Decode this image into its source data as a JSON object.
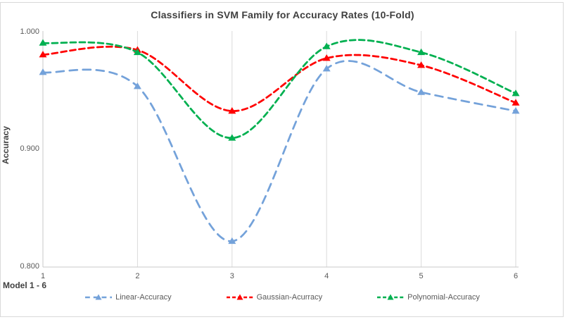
{
  "chart_data": {
    "type": "line",
    "title": "Classifiers in SVM Family for Accuracy Rates (10-Fold)",
    "xlabel": "Model 1 - 6",
    "ylabel": "Accuracy",
    "x": [
      1,
      2,
      3,
      4,
      5,
      6
    ],
    "x_tick_labels": [
      "1",
      "2",
      "3",
      "4",
      "5",
      "6"
    ],
    "y_tick_labels": [
      "1.000",
      "0.900",
      "0.800"
    ],
    "ylim": [
      0.8,
      1.0
    ],
    "y_tick_step": 0.1,
    "grid": "vertical-only",
    "gridline_color": "#DADADA",
    "axis_line_color": "#C9C9C9",
    "line_style": "dashed-smooth",
    "marker": "triangle",
    "legend_position": "bottom",
    "series": [
      {
        "name": "Linear-Accuracy",
        "color": "#74A2DA",
        "dash": [
          11,
          8
        ],
        "values": [
          0.966,
          0.954,
          0.822,
          0.969,
          0.949,
          0.933
        ]
      },
      {
        "name": "Gaussian-Acurracy",
        "color": "#FF0000",
        "dash": [
          8,
          5
        ],
        "values": [
          0.981,
          0.985,
          0.933,
          0.978,
          0.972,
          0.94
        ]
      },
      {
        "name": "Polynomial-Accuracy",
        "color": "#00B050",
        "dash": [
          8,
          5
        ],
        "values": [
          0.991,
          0.983,
          0.91,
          0.988,
          0.983,
          0.948
        ]
      }
    ]
  }
}
